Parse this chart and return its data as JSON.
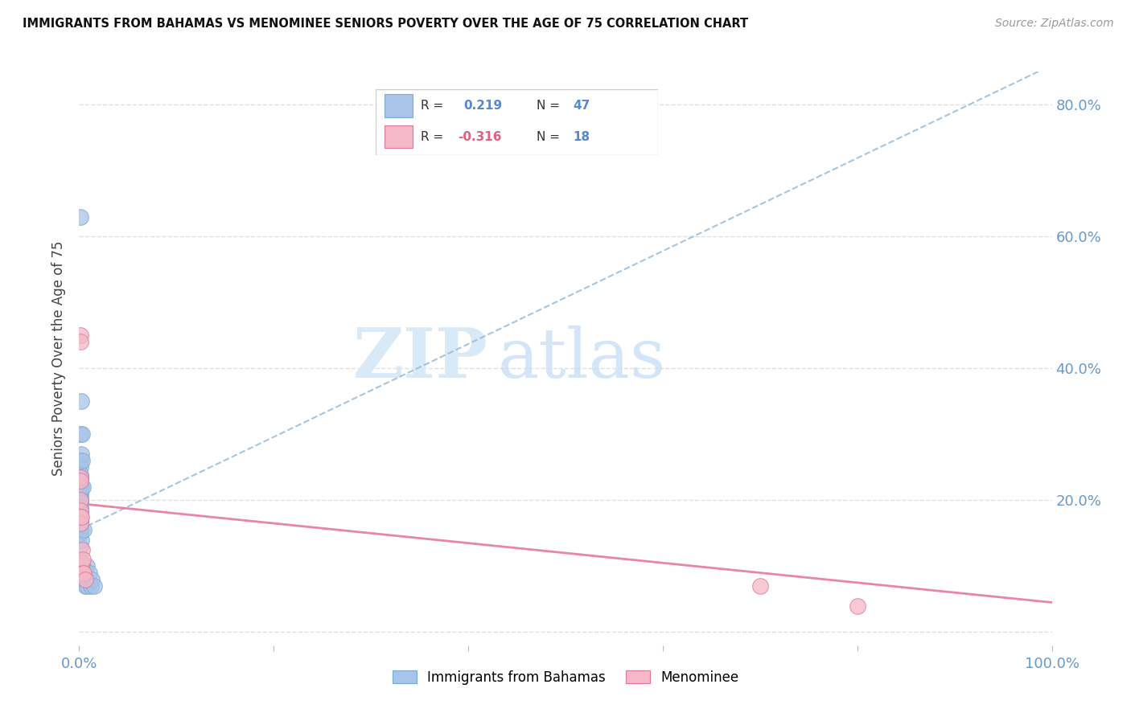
{
  "title": "IMMIGRANTS FROM BAHAMAS VS MENOMINEE SENIORS POVERTY OVER THE AGE OF 75 CORRELATION CHART",
  "source": "Source: ZipAtlas.com",
  "ylabel": "Seniors Poverty Over the Age of 75",
  "xlim": [
    0.0,
    1.0
  ],
  "ylim": [
    -0.02,
    0.85
  ],
  "blue_color": "#a8c4e8",
  "blue_edge": "#7aaad0",
  "pink_color": "#f4b8c8",
  "pink_edge": "#e07898",
  "trendline_blue_color": "#90b8d8",
  "trendline_pink_color": "#e87898",
  "watermark_color": "#d8eaf8",
  "grid_color": "#e0e0e0",
  "tick_color": "#6699cc",
  "blue_scatter_x": [
    0.001,
    0.001,
    0.001,
    0.001,
    0.001,
    0.001,
    0.001,
    0.001,
    0.001,
    0.001,
    0.001,
    0.001,
    0.001,
    0.001,
    0.001,
    0.001,
    0.001,
    0.001,
    0.001,
    0.001,
    0.001,
    0.001,
    0.001,
    0.001,
    0.001,
    0.001,
    0.001,
    0.001,
    0.002,
    0.002,
    0.002,
    0.003,
    0.003,
    0.004,
    0.004,
    0.005,
    0.005,
    0.006,
    0.007,
    0.008,
    0.008,
    0.01,
    0.012,
    0.013,
    0.015,
    0.002,
    0.003
  ],
  "blue_scatter_y": [
    0.63,
    0.3,
    0.26,
    0.25,
    0.24,
    0.235,
    0.23,
    0.225,
    0.22,
    0.215,
    0.21,
    0.205,
    0.2,
    0.2,
    0.195,
    0.19,
    0.185,
    0.18,
    0.175,
    0.17,
    0.165,
    0.16,
    0.155,
    0.15,
    0.13,
    0.1,
    0.09,
    0.08,
    0.27,
    0.22,
    0.14,
    0.26,
    0.08,
    0.22,
    0.1,
    0.155,
    0.09,
    0.07,
    0.08,
    0.1,
    0.07,
    0.09,
    0.07,
    0.08,
    0.07,
    0.35,
    0.3
  ],
  "pink_scatter_x": [
    0.001,
    0.001,
    0.001,
    0.001,
    0.001,
    0.001,
    0.001,
    0.001,
    0.002,
    0.002,
    0.003,
    0.003,
    0.004,
    0.004,
    0.005,
    0.006,
    0.7,
    0.8
  ],
  "pink_scatter_y": [
    0.45,
    0.44,
    0.235,
    0.23,
    0.2,
    0.185,
    0.175,
    0.165,
    0.175,
    0.1,
    0.125,
    0.105,
    0.11,
    0.09,
    0.09,
    0.08,
    0.07,
    0.04
  ],
  "blue_trend_x_start": 0.0,
  "blue_trend_x_end": 1.0,
  "blue_trend_y_start": 0.155,
  "blue_trend_y_end": 0.86,
  "pink_trend_x_start": 0.0,
  "pink_trend_x_end": 1.0,
  "pink_trend_y_start": 0.195,
  "pink_trend_y_end": 0.045,
  "legend_blue_r": "0.219",
  "legend_blue_n": "47",
  "legend_pink_r": "-0.316",
  "legend_pink_n": "18"
}
